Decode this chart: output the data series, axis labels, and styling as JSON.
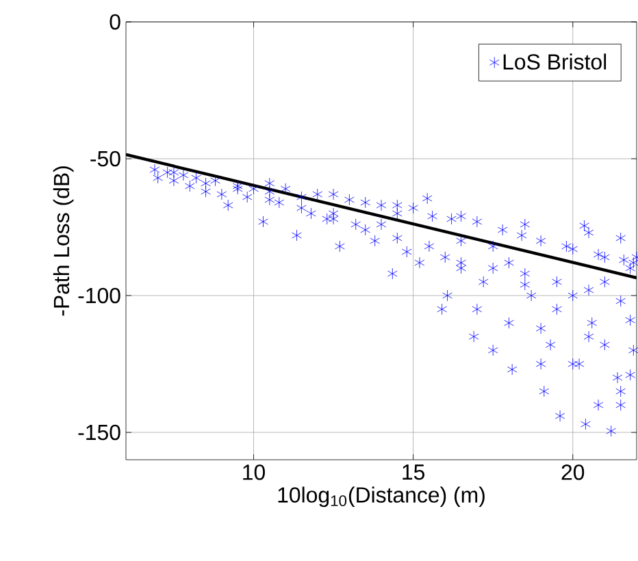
{
  "chart_data": {
    "type": "scatter",
    "xlabel": "10log$_{10}$(Distance) (m)",
    "ylabel": "-Path Loss (dB)",
    "xlim": [
      6,
      22
    ],
    "ylim": [
      -160,
      0
    ],
    "xticks": [
      10,
      15,
      20
    ],
    "yticks": [
      -150,
      -100,
      -50,
      0
    ],
    "grid": true,
    "legend": "top right",
    "series": [
      {
        "name": "LoS Bristol",
        "color": "#0000ff",
        "marker": "cross",
        "x": [
          6.9,
          7.0,
          7.3,
          7.5,
          7.8,
          8.0,
          8.2,
          8.5,
          8.8,
          9.0,
          9.2,
          9.5,
          9.8,
          10.0,
          10.3,
          10.5,
          10.8,
          11.0,
          11.35,
          11.5,
          11.8,
          12.0,
          12.3,
          12.7,
          13.0,
          13.2,
          13.5,
          13.8,
          14.0,
          14.35,
          14.5,
          14.8,
          15.0,
          15.2,
          15.44,
          15.6,
          15.9,
          16.07,
          16.2,
          16.5,
          16.9,
          17.0,
          17.2,
          17.5,
          17.8,
          18.0,
          18.1,
          18.4,
          18.7,
          19.0,
          19.1,
          19.3,
          19.6,
          19.8,
          20.0,
          20.2,
          20.36,
          20.4,
          20.6,
          20.8,
          21.0,
          21.2,
          21.4,
          21.6,
          21.8,
          21.8,
          21.8,
          21.9,
          21.9,
          16.5,
          17.5,
          18.5,
          19.5,
          20.5,
          21.5,
          12.5,
          14.0,
          16.0,
          18.0,
          20.0,
          21.0,
          7.5,
          8.5,
          9.5,
          10.5,
          11.5,
          12.5,
          13.5,
          14.5,
          15.5,
          16.5,
          17.5,
          18.5,
          19.5,
          20.5,
          21.5,
          10.5,
          12.5,
          14.5,
          16.5,
          18.5,
          20.5,
          21.5,
          22.0,
          17.0,
          19.0,
          20.0,
          21.0,
          21.5,
          20.8,
          19.0
        ],
        "values": [
          -54,
          -57,
          -55,
          -58,
          -56,
          -60,
          -57,
          -62,
          -58,
          -63,
          -67,
          -60,
          -64,
          -61,
          -73,
          -62,
          -66,
          -61,
          -78,
          -64,
          -70,
          -63,
          -72,
          -82,
          -65,
          -74,
          -66,
          -80,
          -67,
          -92,
          -70,
          -84,
          -68,
          -88,
          -64.5,
          -71,
          -105,
          -100,
          -72,
          -90,
          -115,
          -73,
          -95,
          -120,
          -76,
          -110,
          -127,
          -78,
          -100,
          -80,
          -135,
          -118,
          -144,
          -82,
          -83,
          -125,
          -74.5,
          -147,
          -110,
          -85,
          -86,
          -149.5,
          -130,
          -87,
          -129,
          -109,
          -90,
          -88,
          -120,
          -80,
          -82,
          -96,
          -105,
          -115,
          -140,
          -70,
          -74,
          -86,
          -88,
          -100,
          -95,
          -55,
          -59,
          -61,
          -65,
          -68,
          -72,
          -76,
          -79,
          -82,
          -88,
          -90,
          -92,
          -95,
          -98,
          -102,
          -59,
          -63,
          -67,
          -71,
          -74,
          -77,
          -79,
          -86,
          -105,
          -112,
          -125,
          -118,
          -135,
          -140,
          -125
        ]
      },
      {
        "type": "line",
        "color": "#000000",
        "marker": "none",
        "x": [
          6,
          22
        ],
        "values": [
          -48.5,
          -93.5
        ]
      }
    ]
  }
}
